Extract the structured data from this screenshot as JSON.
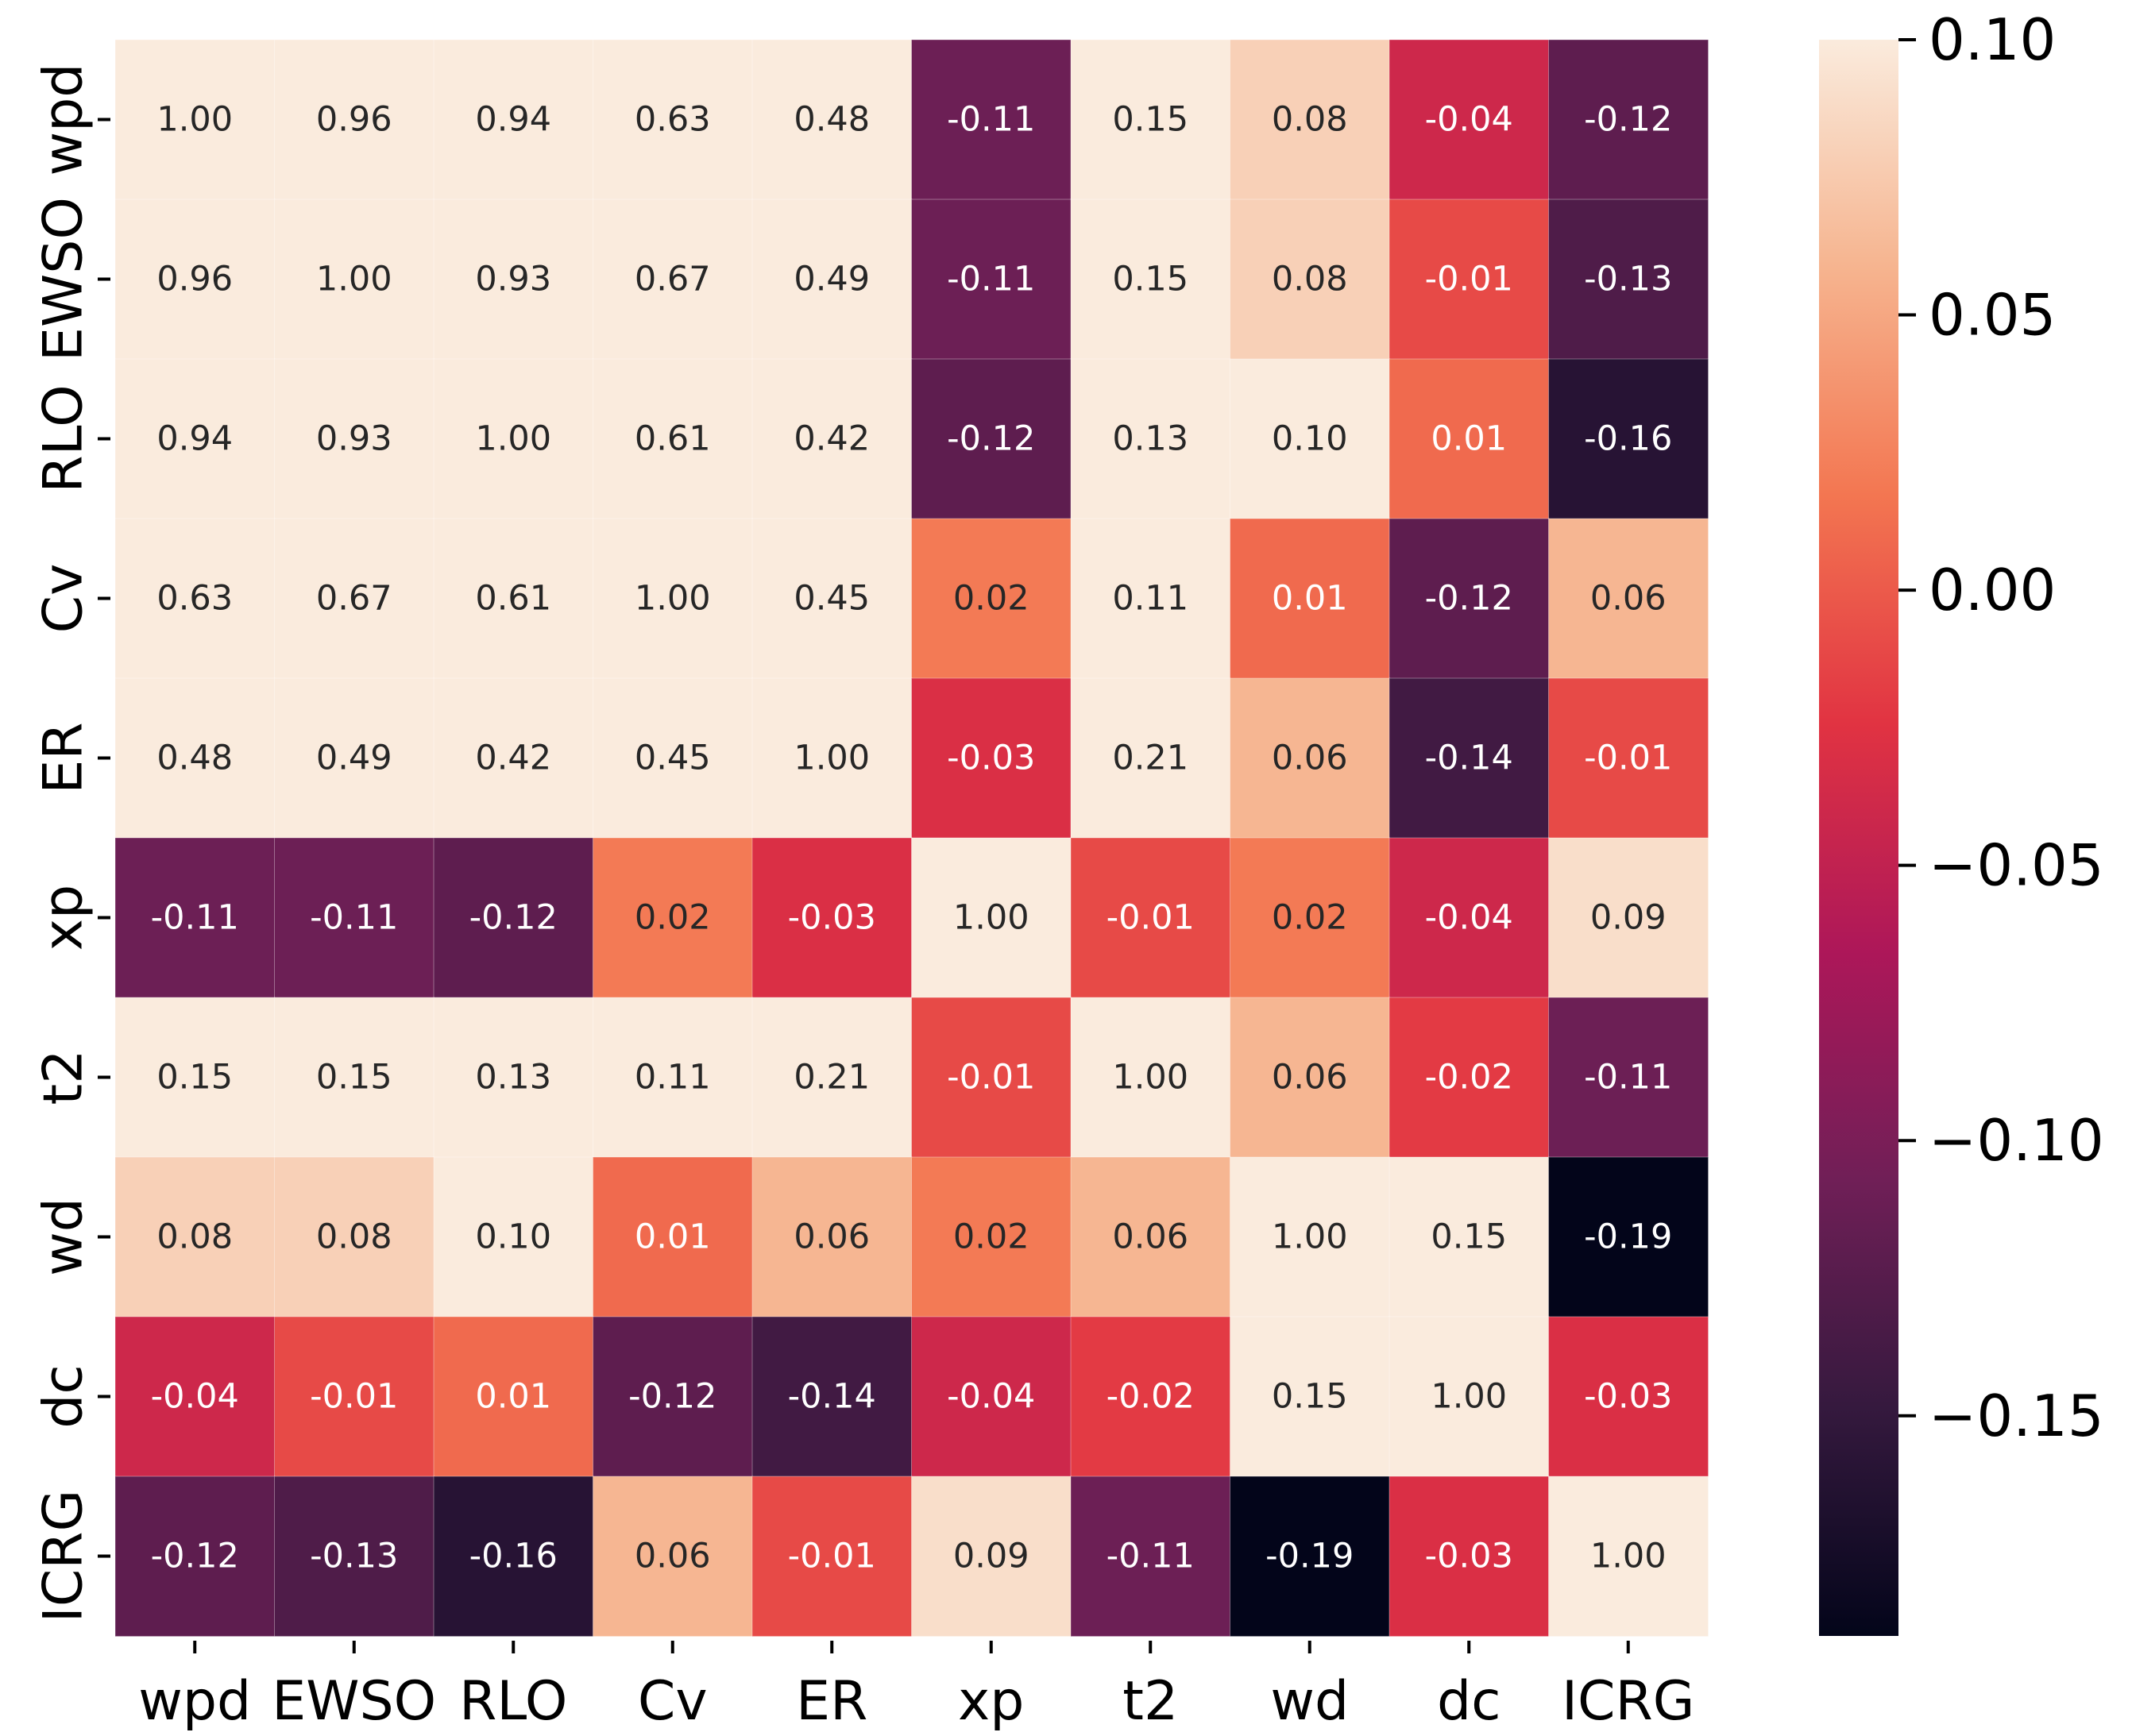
{
  "chart_data": {
    "type": "heatmap",
    "title": "",
    "xlabel": "",
    "ylabel": "",
    "row_labels": [
      "wpd",
      "EWSO",
      "RLO",
      "Cv",
      "ER",
      "xp",
      "t2",
      "wd",
      "dc",
      "ICRG"
    ],
    "col_labels": [
      "wpd",
      "EWSO",
      "RLO",
      "Cv",
      "ER",
      "xp",
      "t2",
      "wd",
      "dc",
      "ICRG"
    ],
    "values": [
      [
        1.0,
        0.96,
        0.94,
        0.63,
        0.48,
        -0.11,
        0.15,
        0.08,
        -0.04,
        -0.12
      ],
      [
        0.96,
        1.0,
        0.93,
        0.67,
        0.49,
        -0.11,
        0.15,
        0.08,
        -0.01,
        -0.13
      ],
      [
        0.94,
        0.93,
        1.0,
        0.61,
        0.42,
        -0.12,
        0.13,
        0.1,
        0.01,
        -0.16
      ],
      [
        0.63,
        0.67,
        0.61,
        1.0,
        0.45,
        0.02,
        0.11,
        0.01,
        -0.12,
        0.06
      ],
      [
        0.48,
        0.49,
        0.42,
        0.45,
        1.0,
        -0.03,
        0.21,
        0.06,
        -0.14,
        -0.01
      ],
      [
        -0.11,
        -0.11,
        -0.12,
        0.02,
        -0.03,
        1.0,
        -0.01,
        0.02,
        -0.04,
        0.09
      ],
      [
        0.15,
        0.15,
        0.13,
        0.11,
        0.21,
        -0.01,
        1.0,
        0.06,
        -0.02,
        -0.11
      ],
      [
        0.08,
        0.08,
        0.1,
        0.01,
        0.06,
        0.02,
        0.06,
        1.0,
        0.15,
        -0.19
      ],
      [
        -0.04,
        -0.01,
        0.01,
        -0.12,
        -0.14,
        -0.04,
        -0.02,
        0.15,
        1.0,
        -0.03
      ],
      [
        -0.12,
        -0.13,
        -0.16,
        0.06,
        -0.01,
        0.09,
        -0.11,
        -0.19,
        -0.03,
        1.0
      ]
    ],
    "annotation_format": "0.00",
    "colorscale": {
      "name": "rocket",
      "vmin": -0.19,
      "vmax": 0.1,
      "ticks": [
        0.1,
        0.05,
        0.0,
        -0.05,
        -0.1,
        -0.15
      ],
      "tick_labels": [
        "0.10",
        "0.05",
        "0.00",
        "−0.05",
        "−0.10",
        "−0.15"
      ],
      "stops": [
        "#03051a",
        "#35193e",
        "#701f57",
        "#ad1759",
        "#e13342",
        "#f37651",
        "#f6b48f",
        "#faebdd"
      ]
    },
    "legend_position": "right",
    "grid": false
  }
}
